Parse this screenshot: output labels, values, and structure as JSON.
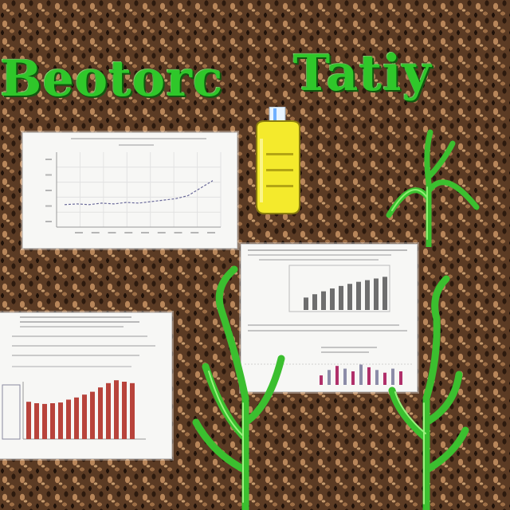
{
  "title": {
    "left_word": "Beotorc",
    "right_word": "Tatiy",
    "color": "#2fc72a"
  },
  "cards": {
    "line_chart_card": {
      "kind": "line",
      "line_color": "#6a6a9a"
    },
    "small_bar_card": {
      "kind": "bar",
      "bar_color": "#6e6e6e",
      "accent_color": "#b0306a"
    },
    "red_bar_card": {
      "kind": "bar",
      "bar_color": "#b8433b"
    }
  },
  "chart_data": [
    {
      "type": "line",
      "series": [
        {
          "values": [
            0.3,
            0.31,
            0.3,
            0.32,
            0.31,
            0.33,
            0.32,
            0.34,
            0.36,
            0.38,
            0.42,
            0.52,
            0.62
          ]
        }
      ]
    },
    {
      "type": "bar",
      "series": [
        {
          "values": [
            0.3,
            0.38,
            0.45,
            0.52,
            0.58,
            0.63,
            0.68,
            0.72,
            0.76,
            0.8
          ]
        },
        {
          "values": [
            0.35,
            0.55,
            0.7,
            0.6,
            0.5,
            0.75,
            0.65,
            0.55,
            0.45,
            0.6,
            0.5
          ]
        }
      ]
    },
    {
      "type": "bar",
      "series": [
        {
          "values": [
            0.52,
            0.5,
            0.49,
            0.5,
            0.51,
            0.55,
            0.58,
            0.62,
            0.66,
            0.72,
            0.78,
            0.82,
            0.8,
            0.78
          ]
        }
      ]
    }
  ],
  "decor": {
    "bottle_color": "#f4ea2c",
    "bottle_cap_color": "#e8f4ff",
    "plant_color": "#3bbf2f"
  }
}
